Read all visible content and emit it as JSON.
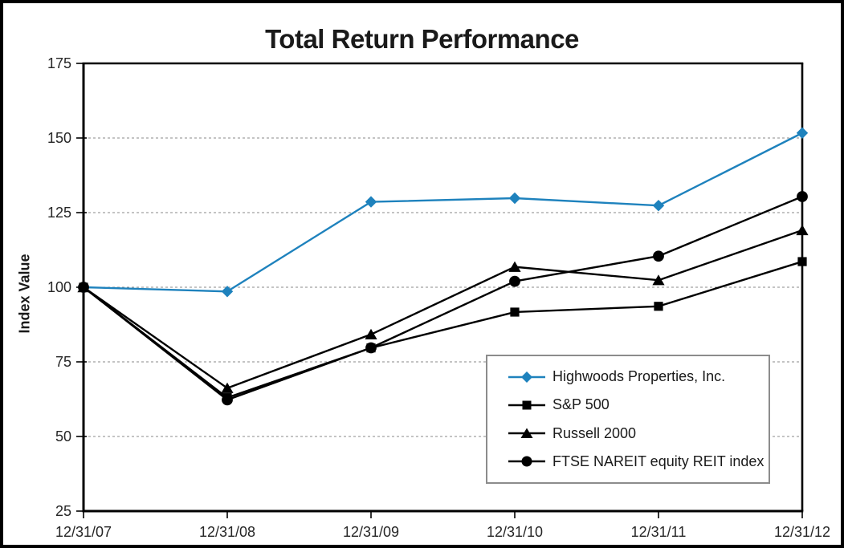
{
  "window": {
    "background": "#ffffff",
    "border_color": "#000000"
  },
  "chart_data": {
    "type": "line",
    "title": "Total Return Performance",
    "xlabel": "",
    "ylabel": "Index Value",
    "categories": [
      "12/31/07",
      "12/31/08",
      "12/31/09",
      "12/31/10",
      "12/31/11",
      "12/31/12"
    ],
    "ylim": [
      25,
      175
    ],
    "yticks": [
      175,
      150,
      125,
      100,
      75,
      50,
      25
    ],
    "grid": "horizontal-dashed",
    "gridline_color": "#8a8a8a",
    "axis_color": "#000000",
    "legend_position": "inside-bottom-right",
    "legend_border_color": "#8c8c8c",
    "series": [
      {
        "name": "Highwoods Properties, Inc.",
        "marker": "diamond",
        "color": "#1E82BD",
        "values": [
          100.0,
          98.58,
          128.6,
          129.84,
          127.36,
          151.68
        ]
      },
      {
        "name": "S&P 500",
        "marker": "square",
        "color": "#000000",
        "values": [
          100.0,
          63.0,
          79.67,
          91.67,
          93.61,
          108.59
        ]
      },
      {
        "name": "Russell 2000",
        "marker": "triangle",
        "color": "#000000",
        "values": [
          100.0,
          66.21,
          84.2,
          106.82,
          102.36,
          119.09
        ]
      },
      {
        "name": "FTSE NAREIT equity REIT index",
        "marker": "circle",
        "color": "#000000",
        "values": [
          100.0,
          62.27,
          79.7,
          101.99,
          110.42,
          130.38
        ]
      }
    ]
  }
}
